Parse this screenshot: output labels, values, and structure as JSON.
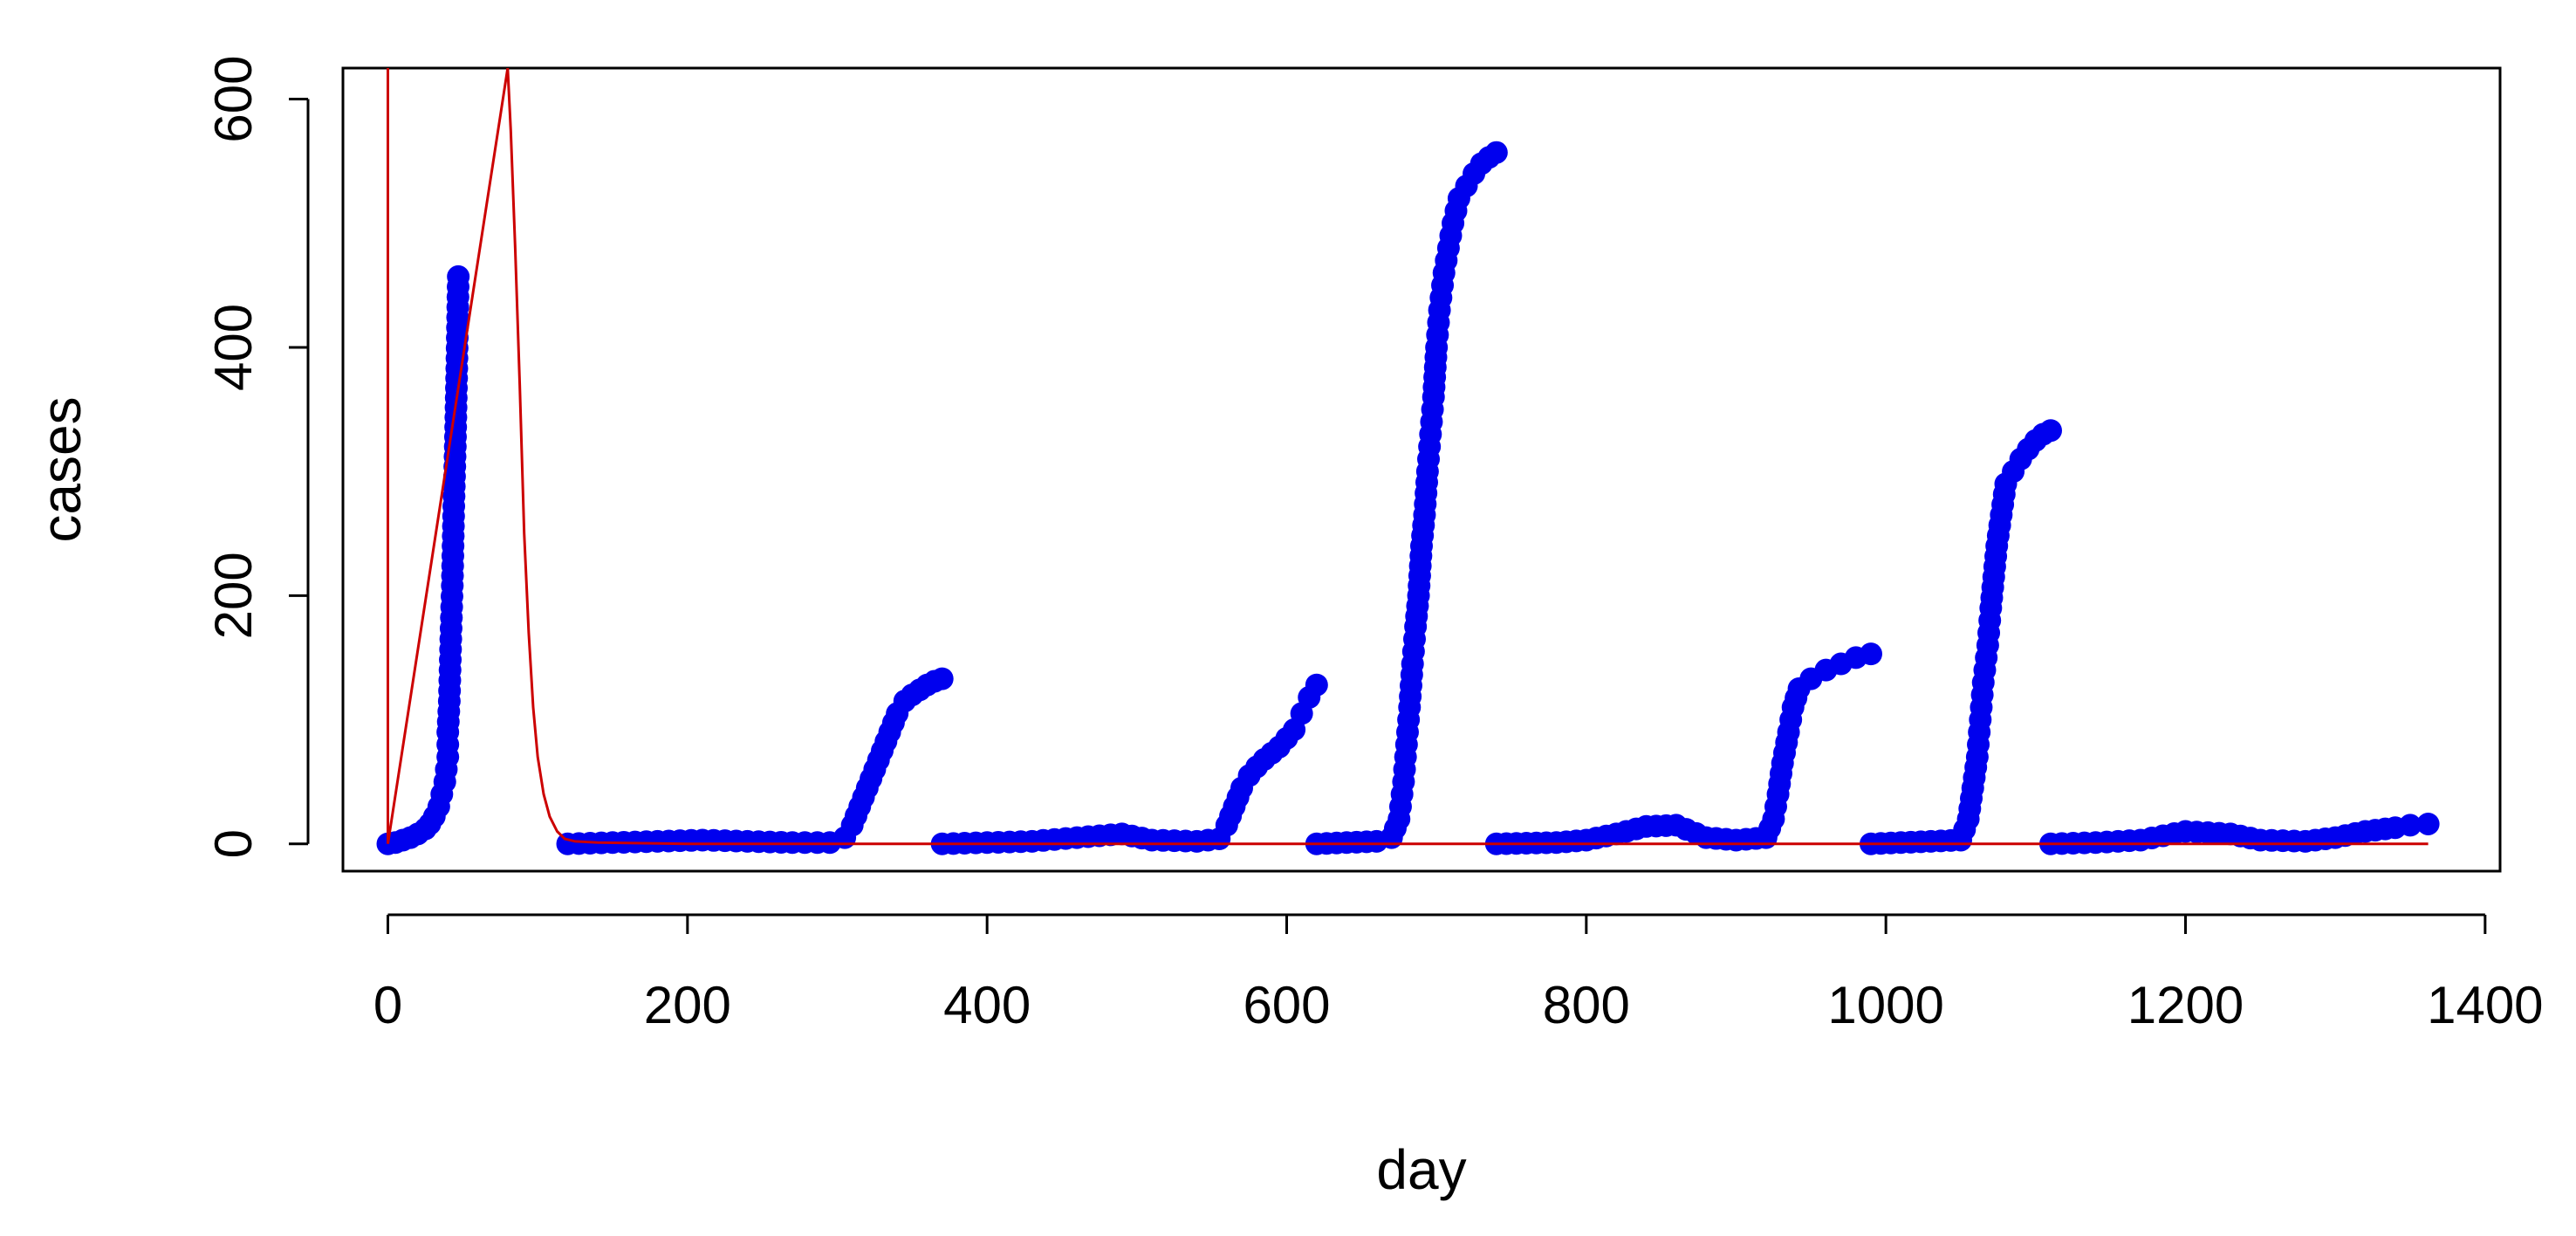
{
  "chart_data": {
    "type": "scatter",
    "title": "",
    "xlabel": "day",
    "ylabel": "cases",
    "xlim": [
      -30,
      1410
    ],
    "ylim": [
      -22,
      625
    ],
    "xticks": [
      0,
      200,
      400,
      600,
      800,
      1000,
      1200,
      1400
    ],
    "yticks": [
      0,
      200,
      400,
      600
    ],
    "grid": false,
    "legend": "none",
    "point_color": "#0000ee",
    "curve_color": "#cc0000",
    "series": [
      {
        "kind": "points",
        "segments": [
          [
            [
              0,
              0
            ],
            [
              5,
              1
            ],
            [
              10,
              3
            ],
            [
              15,
              5
            ],
            [
              20,
              8
            ],
            [
              25,
              12
            ],
            [
              28,
              16
            ],
            [
              31,
              22
            ],
            [
              34,
              30
            ],
            [
              36,
              40
            ],
            [
              38,
              50
            ],
            [
              40,
              70
            ],
            [
              40,
              90
            ],
            [
              41,
              115
            ],
            [
              42,
              165
            ],
            [
              43,
              208
            ],
            [
              44,
              272
            ],
            [
              45,
              320
            ],
            [
              46,
              383
            ],
            [
              47,
              457
            ]
          ],
          [
            [
              120,
              0
            ],
            [
              150,
              1
            ],
            [
              180,
              2
            ],
            [
              210,
              3
            ],
            [
              240,
              2
            ],
            [
              270,
              1
            ],
            [
              295,
              1
            ],
            [
              305,
              5
            ],
            [
              310,
              15
            ],
            [
              315,
              30
            ],
            [
              320,
              45
            ],
            [
              325,
              60
            ],
            [
              330,
              75
            ],
            [
              335,
              90
            ],
            [
              340,
              105
            ],
            [
              345,
              115
            ],
            [
              350,
              120
            ],
            [
              355,
              124
            ],
            [
              360,
              128
            ],
            [
              365,
              131
            ],
            [
              370,
              133
            ]
          ],
          [
            [
              370,
              0
            ],
            [
              400,
              1
            ],
            [
              430,
              2
            ],
            [
              460,
              5
            ],
            [
              490,
              8
            ],
            [
              510,
              3
            ],
            [
              540,
              2
            ],
            [
              555,
              4
            ],
            [
              560,
              15
            ],
            [
              565,
              30
            ],
            [
              570,
              45
            ],
            [
              575,
              55
            ],
            [
              580,
              62
            ],
            [
              585,
              68
            ],
            [
              590,
              73
            ],
            [
              595,
              78
            ],
            [
              600,
              85
            ],
            [
              605,
              92
            ],
            [
              610,
              105
            ],
            [
              615,
              118
            ],
            [
              620,
              128
            ]
          ],
          [
            [
              620,
              0
            ],
            [
              640,
              1
            ],
            [
              660,
              2
            ],
            [
              670,
              5
            ],
            [
              675,
              20
            ],
            [
              678,
              50
            ],
            [
              680,
              80
            ],
            [
              682,
              110
            ],
            [
              684,
              145
            ],
            [
              686,
              175
            ],
            [
              688,
              200
            ],
            [
              690,
              240
            ],
            [
              692,
              265
            ],
            [
              694,
              300
            ],
            [
              696,
              330
            ],
            [
              698,
              360
            ],
            [
              700,
              400
            ],
            [
              702,
              430
            ],
            [
              705,
              460
            ],
            [
              708,
              480
            ],
            [
              711,
              500
            ],
            [
              715,
              520
            ],
            [
              720,
              530
            ],
            [
              725,
              540
            ],
            [
              730,
              548
            ],
            [
              735,
              553
            ],
            [
              740,
              557
            ]
          ],
          [
            [
              740,
              0
            ],
            [
              780,
              1
            ],
            [
              800,
              3
            ],
            [
              820,
              8
            ],
            [
              840,
              14
            ],
            [
              860,
              15
            ],
            [
              880,
              5
            ],
            [
              900,
              3
            ],
            [
              920,
              5
            ],
            [
              925,
              20
            ],
            [
              928,
              40
            ],
            [
              931,
              65
            ],
            [
              935,
              90
            ],
            [
              938,
              110
            ],
            [
              942,
              125
            ],
            [
              950,
              133
            ],
            [
              960,
              140
            ],
            [
              970,
              145
            ],
            [
              980,
              150
            ],
            [
              990,
              153
            ]
          ],
          [
            [
              990,
              0
            ],
            [
              1010,
              1
            ],
            [
              1030,
              2
            ],
            [
              1050,
              3
            ],
            [
              1055,
              20
            ],
            [
              1058,
              45
            ],
            [
              1061,
              70
            ],
            [
              1063,
              100
            ],
            [
              1065,
              130
            ],
            [
              1068,
              160
            ],
            [
              1070,
              190
            ],
            [
              1072,
              215
            ],
            [
              1074,
              240
            ],
            [
              1077,
              265
            ],
            [
              1080,
              290
            ],
            [
              1085,
              300
            ],
            [
              1090,
              310
            ],
            [
              1095,
              318
            ],
            [
              1100,
              325
            ],
            [
              1105,
              330
            ],
            [
              1110,
              333
            ]
          ],
          [
            [
              1110,
              0
            ],
            [
              1140,
              1
            ],
            [
              1170,
              3
            ],
            [
              1200,
              10
            ],
            [
              1230,
              8
            ],
            [
              1250,
              3
            ],
            [
              1280,
              2
            ],
            [
              1300,
              5
            ],
            [
              1320,
              10
            ],
            [
              1340,
              13
            ],
            [
              1350,
              15
            ],
            [
              1362,
              16
            ]
          ]
        ]
      },
      {
        "kind": "line",
        "points": [
          [
            0,
            625
          ],
          [
            0,
            5
          ],
          [
            0,
            0
          ],
          [
            80,
            625
          ],
          [
            82,
            575
          ],
          [
            85,
            480
          ],
          [
            88,
            370
          ],
          [
            91,
            250
          ],
          [
            94,
            170
          ],
          [
            97,
            110
          ],
          [
            100,
            70
          ],
          [
            104,
            40
          ],
          [
            108,
            22
          ],
          [
            113,
            10
          ],
          [
            118,
            4
          ],
          [
            125,
            2
          ],
          [
            140,
            1
          ],
          [
            200,
            0
          ],
          [
            400,
            0
          ],
          [
            600,
            0
          ],
          [
            800,
            0
          ],
          [
            1000,
            0
          ],
          [
            1200,
            0
          ],
          [
            1362,
            0
          ]
        ]
      }
    ]
  }
}
